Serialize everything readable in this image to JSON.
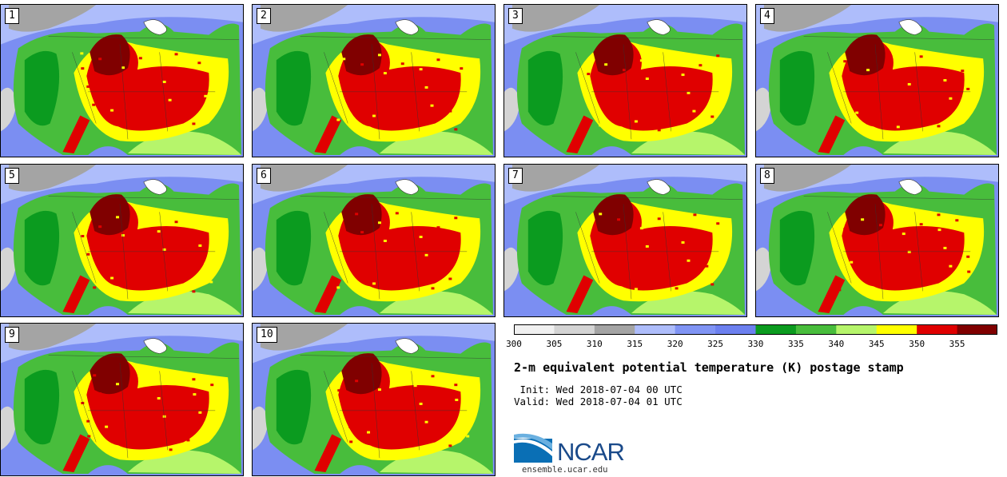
{
  "members": [
    {
      "label": "1"
    },
    {
      "label": "2"
    },
    {
      "label": "3"
    },
    {
      "label": "4"
    },
    {
      "label": "5"
    },
    {
      "label": "6"
    },
    {
      "label": "7"
    },
    {
      "label": "8"
    },
    {
      "label": "9"
    },
    {
      "label": "10"
    }
  ],
  "colorbar": {
    "ticks": [
      "300",
      "305",
      "310",
      "315",
      "320",
      "325",
      "330",
      "335",
      "340",
      "345",
      "350",
      "355"
    ],
    "colors": [
      "#f0f0f0",
      "#d4d4d4",
      "#a4a4a4",
      "#aebdfb",
      "#8094f4",
      "#6c80ef",
      "#0b9b1f",
      "#48bd3c",
      "#b6f56b",
      "#ffff00",
      "#e00000",
      "#800000"
    ]
  },
  "title": "2-m equivalent potential temperature (K) postage stamp",
  "init": " Init: Wed 2018-07-04 00 UTC",
  "valid": "Valid: Wed 2018-07-04 01 UTC",
  "logo": {
    "text": "NCAR",
    "url_text": "ensemble.ucar.edu"
  },
  "colors": {
    "ocean": "#7b8ef2",
    "land_green": "#48bd3c",
    "hot": "#e00000",
    "very_hot": "#800000"
  }
}
